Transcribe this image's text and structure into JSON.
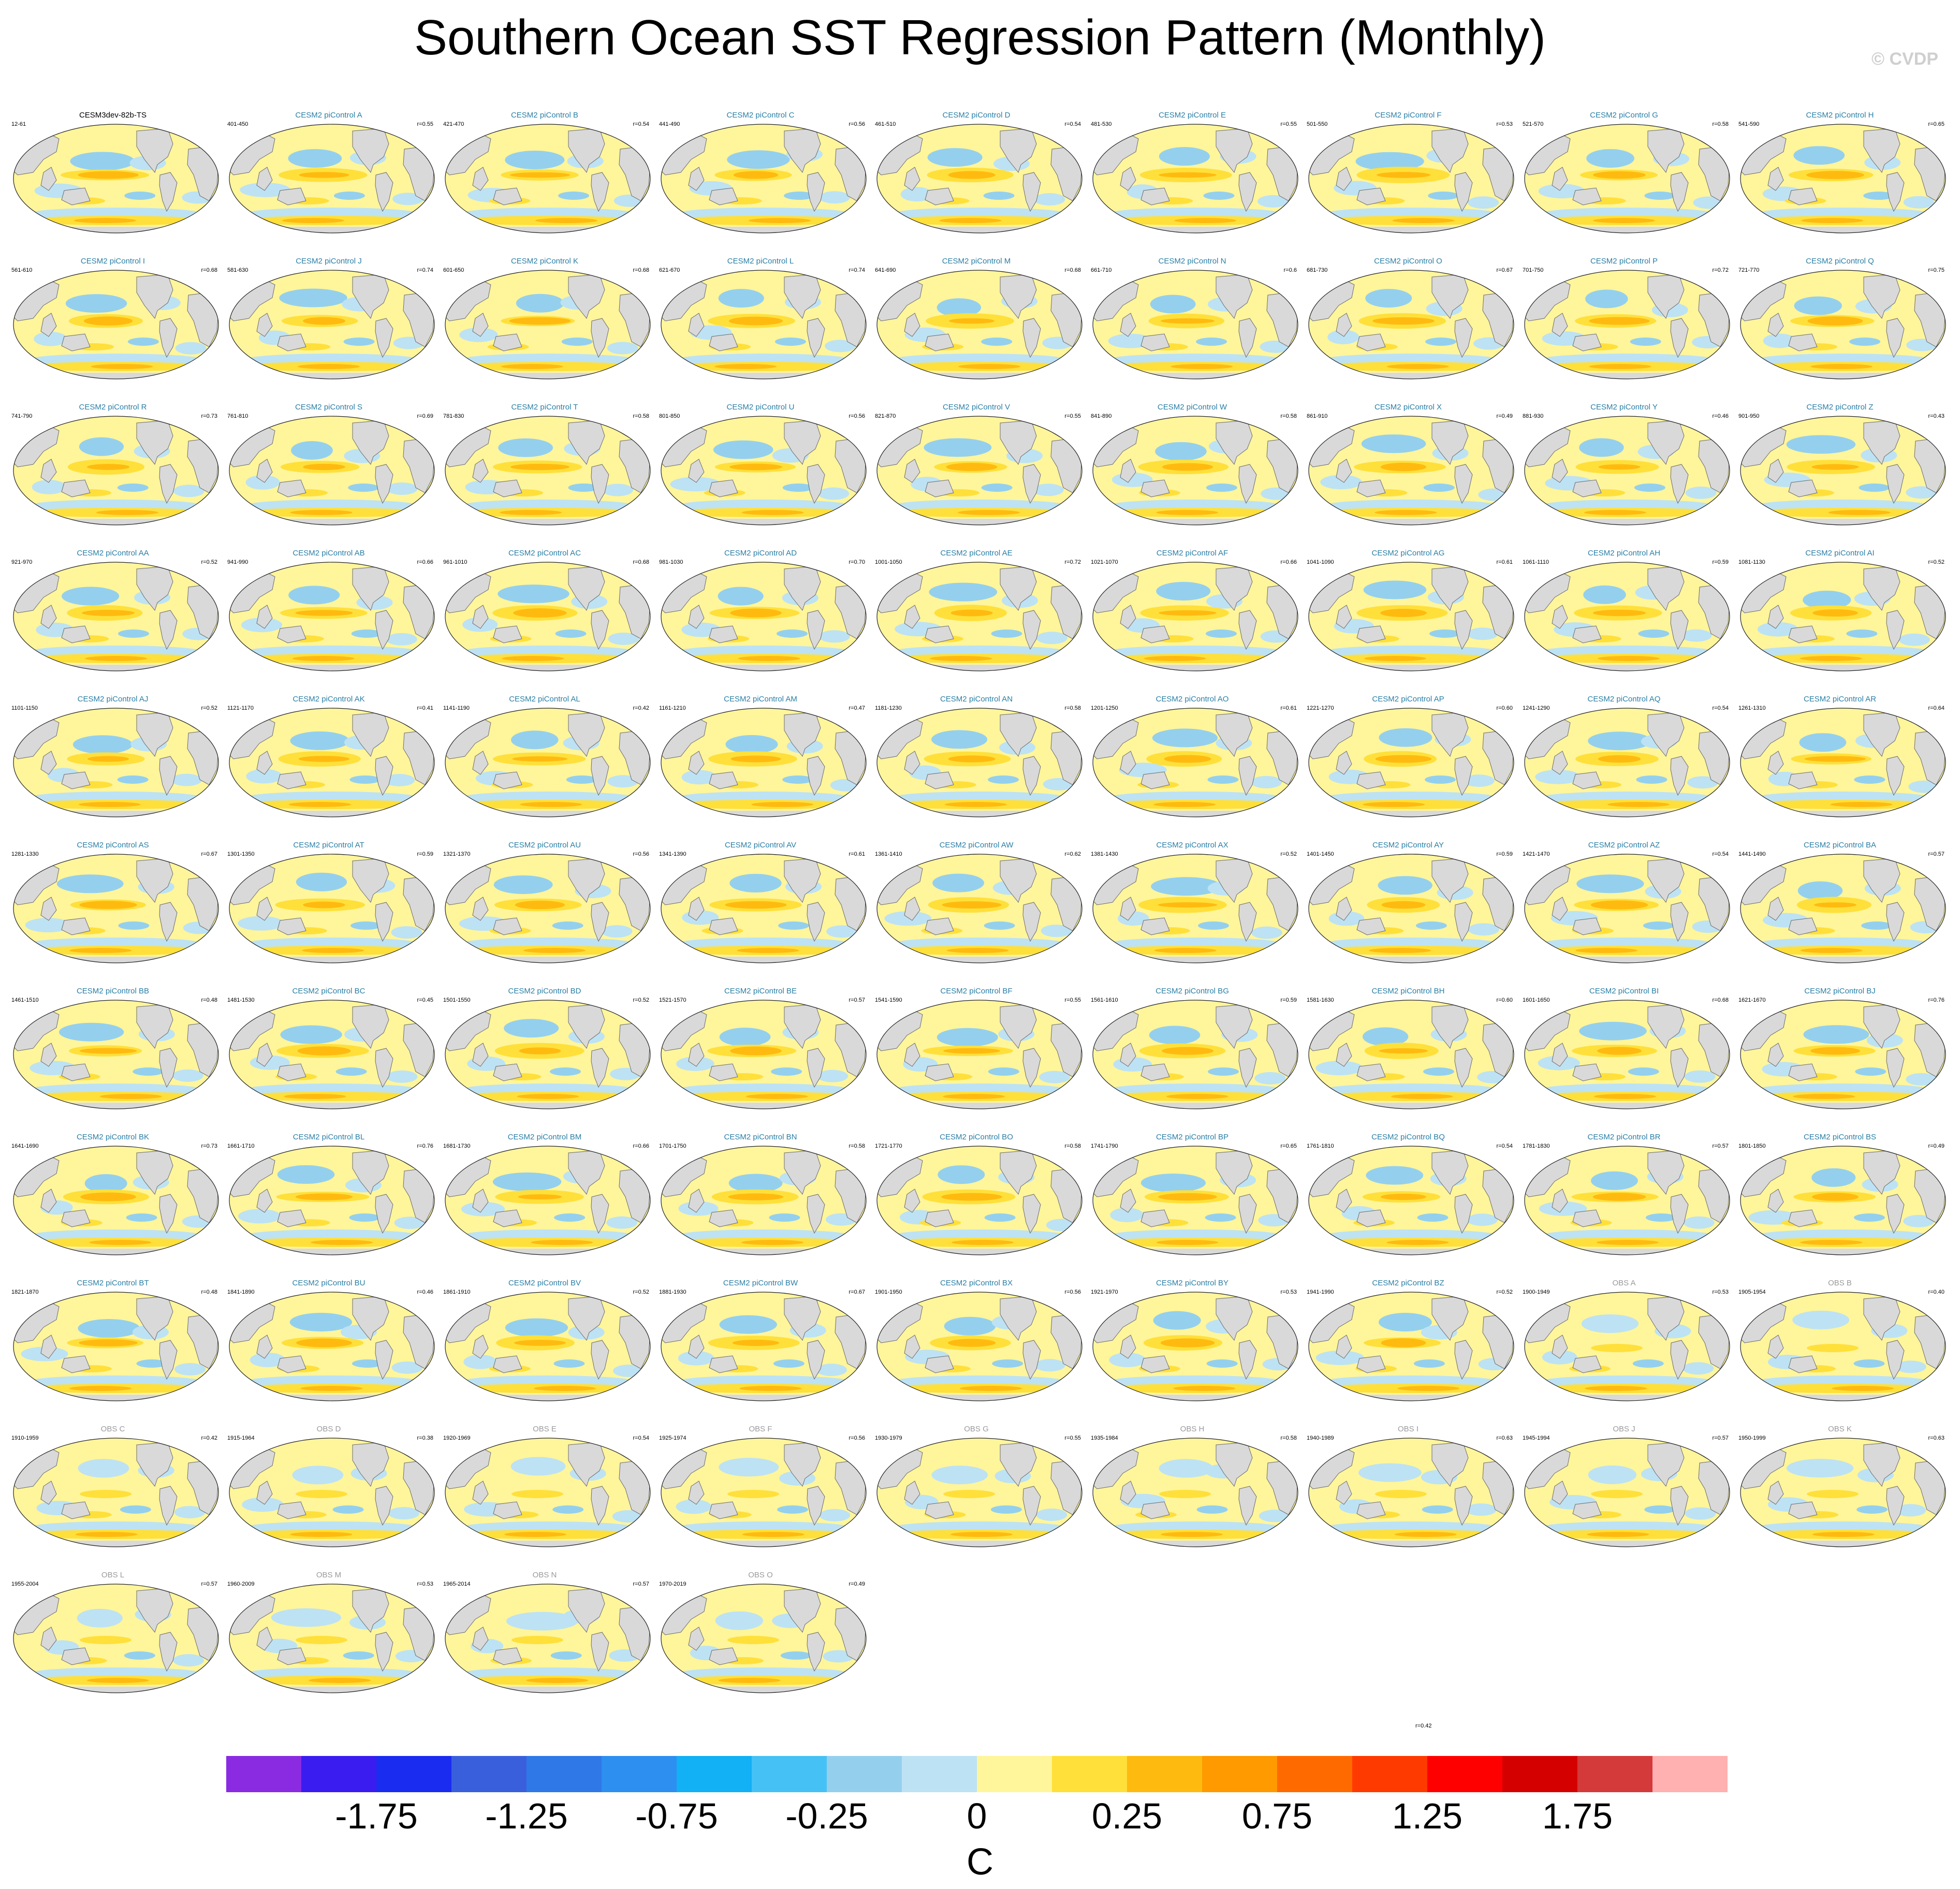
{
  "page": {
    "title": "Southern Ocean SST Regression Pattern (Monthly)",
    "credit": "© CVDP"
  },
  "colors": {
    "cesm_title": "#2a7fa6",
    "ref_title": "#000000",
    "obs_title": "#9a9a9a",
    "land": "#d9d9d9",
    "coast": "#6a6a6a"
  },
  "colorbar": {
    "unit": "C",
    "colors": [
      "#8a2be2",
      "#3a1cf0",
      "#1a2cf0",
      "#3a5fdc",
      "#2f78e8",
      "#2d8ff0",
      "#12b0f5",
      "#46c1f5",
      "#94d0ee",
      "#bde2f4",
      "#fff59b",
      "#ffe03a",
      "#ffba10",
      "#ff9a00",
      "#ff6a00",
      "#ff3a00",
      "#ff0000",
      "#d40000",
      "#d43a3a",
      "#ffb0b0"
    ],
    "labels": [
      "-1.75",
      "-1.25",
      "-0.75",
      "-0.25",
      "0",
      "0.25",
      "0.75",
      "1.25",
      "1.75"
    ]
  },
  "panels": [
    {
      "title": "CESM3dev-82b-TS",
      "period": "12-61",
      "r": "",
      "kind": "ref"
    },
    {
      "title": "CESM2 piControl A",
      "period": "401-450",
      "r": "r=0.55",
      "kind": "cesm"
    },
    {
      "title": "CESM2 piControl B",
      "period": "421-470",
      "r": "r=0.54",
      "kind": "cesm"
    },
    {
      "title": "CESM2 piControl C",
      "period": "441-490",
      "r": "r=0.56",
      "kind": "cesm"
    },
    {
      "title": "CESM2 piControl D",
      "period": "461-510",
      "r": "r=0.54",
      "kind": "cesm"
    },
    {
      "title": "CESM2 piControl E",
      "period": "481-530",
      "r": "r=0.55",
      "kind": "cesm"
    },
    {
      "title": "CESM2 piControl F",
      "period": "501-550",
      "r": "r=0.53",
      "kind": "cesm"
    },
    {
      "title": "CESM2 piControl G",
      "period": "521-570",
      "r": "r=0.58",
      "kind": "cesm"
    },
    {
      "title": "CESM2 piControl H",
      "period": "541-590",
      "r": "r=0.65",
      "kind": "cesm"
    },
    {
      "title": "CESM2 piControl I",
      "period": "561-610",
      "r": "r=0.68",
      "kind": "cesm"
    },
    {
      "title": "CESM2 piControl J",
      "period": "581-630",
      "r": "r=0.74",
      "kind": "cesm"
    },
    {
      "title": "CESM2 piControl K",
      "period": "601-650",
      "r": "r=0.68",
      "kind": "cesm"
    },
    {
      "title": "CESM2 piControl L",
      "period": "621-670",
      "r": "r=0.74",
      "kind": "cesm"
    },
    {
      "title": "CESM2 piControl M",
      "period": "641-690",
      "r": "r=0.68",
      "kind": "cesm"
    },
    {
      "title": "CESM2 piControl N",
      "period": "661-710",
      "r": "r=0.6",
      "kind": "cesm"
    },
    {
      "title": "CESM2 piControl O",
      "period": "681-730",
      "r": "r=0.67",
      "kind": "cesm"
    },
    {
      "title": "CESM2 piControl P",
      "period": "701-750",
      "r": "r=0.72",
      "kind": "cesm"
    },
    {
      "title": "CESM2 piControl Q",
      "period": "721-770",
      "r": "r=0.75",
      "kind": "cesm"
    },
    {
      "title": "CESM2 piControl R",
      "period": "741-790",
      "r": "r=0.73",
      "kind": "cesm"
    },
    {
      "title": "CESM2 piControl S",
      "period": "761-810",
      "r": "r=0.69",
      "kind": "cesm"
    },
    {
      "title": "CESM2 piControl T",
      "period": "781-830",
      "r": "r=0.58",
      "kind": "cesm"
    },
    {
      "title": "CESM2 piControl U",
      "period": "801-850",
      "r": "r=0.56",
      "kind": "cesm"
    },
    {
      "title": "CESM2 piControl V",
      "period": "821-870",
      "r": "r=0.55",
      "kind": "cesm"
    },
    {
      "title": "CESM2 piControl W",
      "period": "841-890",
      "r": "r=0.58",
      "kind": "cesm"
    },
    {
      "title": "CESM2 piControl X",
      "period": "861-910",
      "r": "r=0.49",
      "kind": "cesm"
    },
    {
      "title": "CESM2 piControl Y",
      "period": "881-930",
      "r": "r=0.46",
      "kind": "cesm"
    },
    {
      "title": "CESM2 piControl Z",
      "period": "901-950",
      "r": "r=0.43",
      "kind": "cesm"
    },
    {
      "title": "CESM2 piControl AA",
      "period": "921-970",
      "r": "r=0.52",
      "kind": "cesm"
    },
    {
      "title": "CESM2 piControl AB",
      "period": "941-990",
      "r": "r=0.66",
      "kind": "cesm"
    },
    {
      "title": "CESM2 piControl AC",
      "period": "961-1010",
      "r": "r=0.68",
      "kind": "cesm"
    },
    {
      "title": "CESM2 piControl AD",
      "period": "981-1030",
      "r": "r=0.70",
      "kind": "cesm"
    },
    {
      "title": "CESM2 piControl AE",
      "period": "1001-1050",
      "r": "r=0.72",
      "kind": "cesm"
    },
    {
      "title": "CESM2 piControl AF",
      "period": "1021-1070",
      "r": "r=0.66",
      "kind": "cesm"
    },
    {
      "title": "CESM2 piControl AG",
      "period": "1041-1090",
      "r": "r=0.61",
      "kind": "cesm"
    },
    {
      "title": "CESM2 piControl AH",
      "period": "1061-1110",
      "r": "r=0.59",
      "kind": "cesm"
    },
    {
      "title": "CESM2 piControl AI",
      "period": "1081-1130",
      "r": "r=0.52",
      "kind": "cesm"
    },
    {
      "title": "CESM2 piControl AJ",
      "period": "1101-1150",
      "r": "r=0.52",
      "kind": "cesm"
    },
    {
      "title": "CESM2 piControl AK",
      "period": "1121-1170",
      "r": "r=0.41",
      "kind": "cesm"
    },
    {
      "title": "CESM2 piControl AL",
      "period": "1141-1190",
      "r": "r=0.42",
      "kind": "cesm"
    },
    {
      "title": "CESM2 piControl AM",
      "period": "1161-1210",
      "r": "r=0.47",
      "kind": "cesm"
    },
    {
      "title": "CESM2 piControl AN",
      "period": "1181-1230",
      "r": "r=0.58",
      "kind": "cesm"
    },
    {
      "title": "CESM2 piControl AO",
      "period": "1201-1250",
      "r": "r=0.61",
      "kind": "cesm"
    },
    {
      "title": "CESM2 piControl AP",
      "period": "1221-1270",
      "r": "r=0.60",
      "kind": "cesm"
    },
    {
      "title": "CESM2 piControl AQ",
      "period": "1241-1290",
      "r": "r=0.54",
      "kind": "cesm"
    },
    {
      "title": "CESM2 piControl AR",
      "period": "1261-1310",
      "r": "r=0.64",
      "kind": "cesm"
    },
    {
      "title": "CESM2 piControl AS",
      "period": "1281-1330",
      "r": "r=0.67",
      "kind": "cesm"
    },
    {
      "title": "CESM2 piControl AT",
      "period": "1301-1350",
      "r": "r=0.59",
      "kind": "cesm"
    },
    {
      "title": "CESM2 piControl AU",
      "period": "1321-1370",
      "r": "r=0.56",
      "kind": "cesm"
    },
    {
      "title": "CESM2 piControl AV",
      "period": "1341-1390",
      "r": "r=0.61",
      "kind": "cesm"
    },
    {
      "title": "CESM2 piControl AW",
      "period": "1361-1410",
      "r": "r=0.62",
      "kind": "cesm"
    },
    {
      "title": "CESM2 piControl AX",
      "period": "1381-1430",
      "r": "r=0.52",
      "kind": "cesm"
    },
    {
      "title": "CESM2 piControl AY",
      "period": "1401-1450",
      "r": "r=0.59",
      "kind": "cesm"
    },
    {
      "title": "CESM2 piControl AZ",
      "period": "1421-1470",
      "r": "r=0.54",
      "kind": "cesm"
    },
    {
      "title": "CESM2 piControl BA",
      "period": "1441-1490",
      "r": "r=0.57",
      "kind": "cesm"
    },
    {
      "title": "CESM2 piControl BB",
      "period": "1461-1510",
      "r": "r=0.48",
      "kind": "cesm"
    },
    {
      "title": "CESM2 piControl BC",
      "period": "1481-1530",
      "r": "r=0.45",
      "kind": "cesm"
    },
    {
      "title": "CESM2 piControl BD",
      "period": "1501-1550",
      "r": "r=0.52",
      "kind": "cesm"
    },
    {
      "title": "CESM2 piControl BE",
      "period": "1521-1570",
      "r": "r=0.57",
      "kind": "cesm"
    },
    {
      "title": "CESM2 piControl BF",
      "period": "1541-1590",
      "r": "r=0.55",
      "kind": "cesm"
    },
    {
      "title": "CESM2 piControl BG",
      "period": "1561-1610",
      "r": "r=0.59",
      "kind": "cesm"
    },
    {
      "title": "CESM2 piControl BH",
      "period": "1581-1630",
      "r": "r=0.60",
      "kind": "cesm"
    },
    {
      "title": "CESM2 piControl BI",
      "period": "1601-1650",
      "r": "r=0.68",
      "kind": "cesm"
    },
    {
      "title": "CESM2 piControl BJ",
      "period": "1621-1670",
      "r": "r=0.76",
      "kind": "cesm"
    },
    {
      "title": "CESM2 piControl BK",
      "period": "1641-1690",
      "r": "r=0.73",
      "kind": "cesm"
    },
    {
      "title": "CESM2 piControl BL",
      "period": "1661-1710",
      "r": "r=0.76",
      "kind": "cesm"
    },
    {
      "title": "CESM2 piControl BM",
      "period": "1681-1730",
      "r": "r=0.66",
      "kind": "cesm"
    },
    {
      "title": "CESM2 piControl BN",
      "period": "1701-1750",
      "r": "r=0.58",
      "kind": "cesm"
    },
    {
      "title": "CESM2 piControl BO",
      "period": "1721-1770",
      "r": "r=0.58",
      "kind": "cesm"
    },
    {
      "title": "CESM2 piControl BP",
      "period": "1741-1790",
      "r": "r=0.65",
      "kind": "cesm"
    },
    {
      "title": "CESM2 piControl BQ",
      "period": "1761-1810",
      "r": "r=0.54",
      "kind": "cesm"
    },
    {
      "title": "CESM2 piControl BR",
      "period": "1781-1830",
      "r": "r=0.57",
      "kind": "cesm"
    },
    {
      "title": "CESM2 piControl BS",
      "period": "1801-1850",
      "r": "r=0.49",
      "kind": "cesm"
    },
    {
      "title": "CESM2 piControl BT",
      "period": "1821-1870",
      "r": "r=0.48",
      "kind": "cesm"
    },
    {
      "title": "CESM2 piControl BU",
      "period": "1841-1890",
      "r": "r=0.46",
      "kind": "cesm"
    },
    {
      "title": "CESM2 piControl BV",
      "period": "1861-1910",
      "r": "r=0.52",
      "kind": "cesm"
    },
    {
      "title": "CESM2 piControl BW",
      "period": "1881-1930",
      "r": "r=0.67",
      "kind": "cesm"
    },
    {
      "title": "CESM2 piControl BX",
      "period": "1901-1950",
      "r": "r=0.56",
      "kind": "cesm"
    },
    {
      "title": "CESM2 piControl BY",
      "period": "1921-1970",
      "r": "r=0.53",
      "kind": "cesm"
    },
    {
      "title": "CESM2 piControl BZ",
      "period": "1941-1990",
      "r": "r=0.52",
      "kind": "cesm"
    },
    {
      "title": "OBS A",
      "period": "1900-1949",
      "r": "r=0.53",
      "kind": "obs"
    },
    {
      "title": "OBS B",
      "period": "1905-1954",
      "r": "r=0.40",
      "kind": "obs"
    },
    {
      "title": "OBS C",
      "period": "1910-1959",
      "r": "r=0.42",
      "kind": "obs"
    },
    {
      "title": "OBS D",
      "period": "1915-1964",
      "r": "r=0.38",
      "kind": "obs"
    },
    {
      "title": "OBS E",
      "period": "1920-1969",
      "r": "r=0.54",
      "kind": "obs"
    },
    {
      "title": "OBS F",
      "period": "1925-1974",
      "r": "r=0.56",
      "kind": "obs"
    },
    {
      "title": "OBS G",
      "period": "1930-1979",
      "r": "r=0.55",
      "kind": "obs"
    },
    {
      "title": "OBS H",
      "period": "1935-1984",
      "r": "r=0.58",
      "kind": "obs"
    },
    {
      "title": "OBS I",
      "period": "1940-1989",
      "r": "r=0.63",
      "kind": "obs"
    },
    {
      "title": "OBS J",
      "period": "1945-1994",
      "r": "r=0.57",
      "kind": "obs"
    },
    {
      "title": "OBS K",
      "period": "1950-1999",
      "r": "r=0.63",
      "kind": "obs"
    },
    {
      "title": "OBS L",
      "period": "1955-2004",
      "r": "r=0.57",
      "kind": "obs"
    },
    {
      "title": "OBS M",
      "period": "1960-2009",
      "r": "r=0.53",
      "kind": "obs"
    },
    {
      "title": "OBS N",
      "period": "1965-2014",
      "r": "r=0.57",
      "kind": "obs"
    },
    {
      "title": "OBS O",
      "period": "1970-2019",
      "r": "r=0.49",
      "kind": "obs"
    },
    {
      "title": "",
      "period": "",
      "r": "r=0.42",
      "kind": "blank"
    }
  ]
}
